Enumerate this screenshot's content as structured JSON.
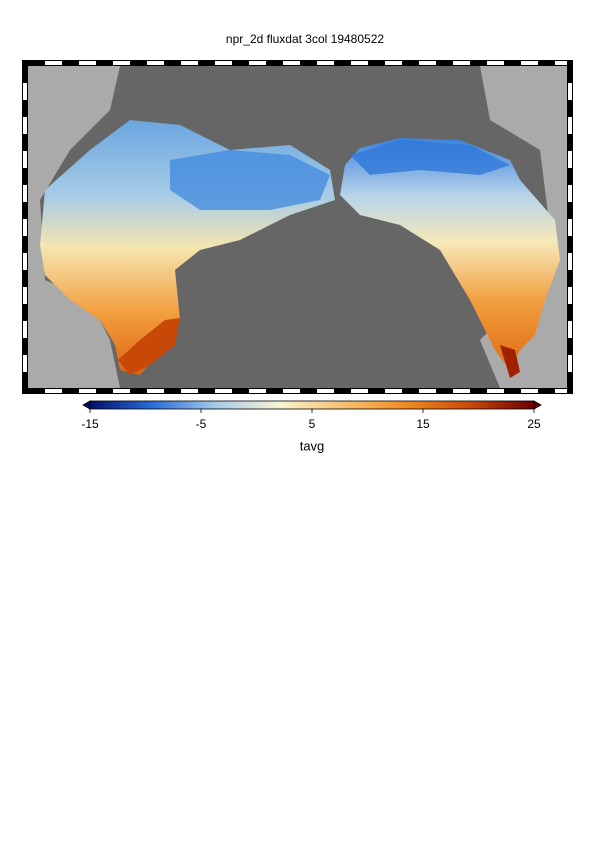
{
  "title": "npr_2d fluxdat 3col 19480522",
  "colorbar": {
    "label": "tavg",
    "lim": [
      -15,
      25
    ],
    "ticks": [
      -15,
      -5,
      5,
      15,
      25
    ],
    "colors": [
      "#00106e",
      "#2a6fd8",
      "#a9cbe8",
      "#f7f4d0",
      "#f8c070",
      "#f08a20",
      "#c84808",
      "#6a0000"
    ]
  }
}
